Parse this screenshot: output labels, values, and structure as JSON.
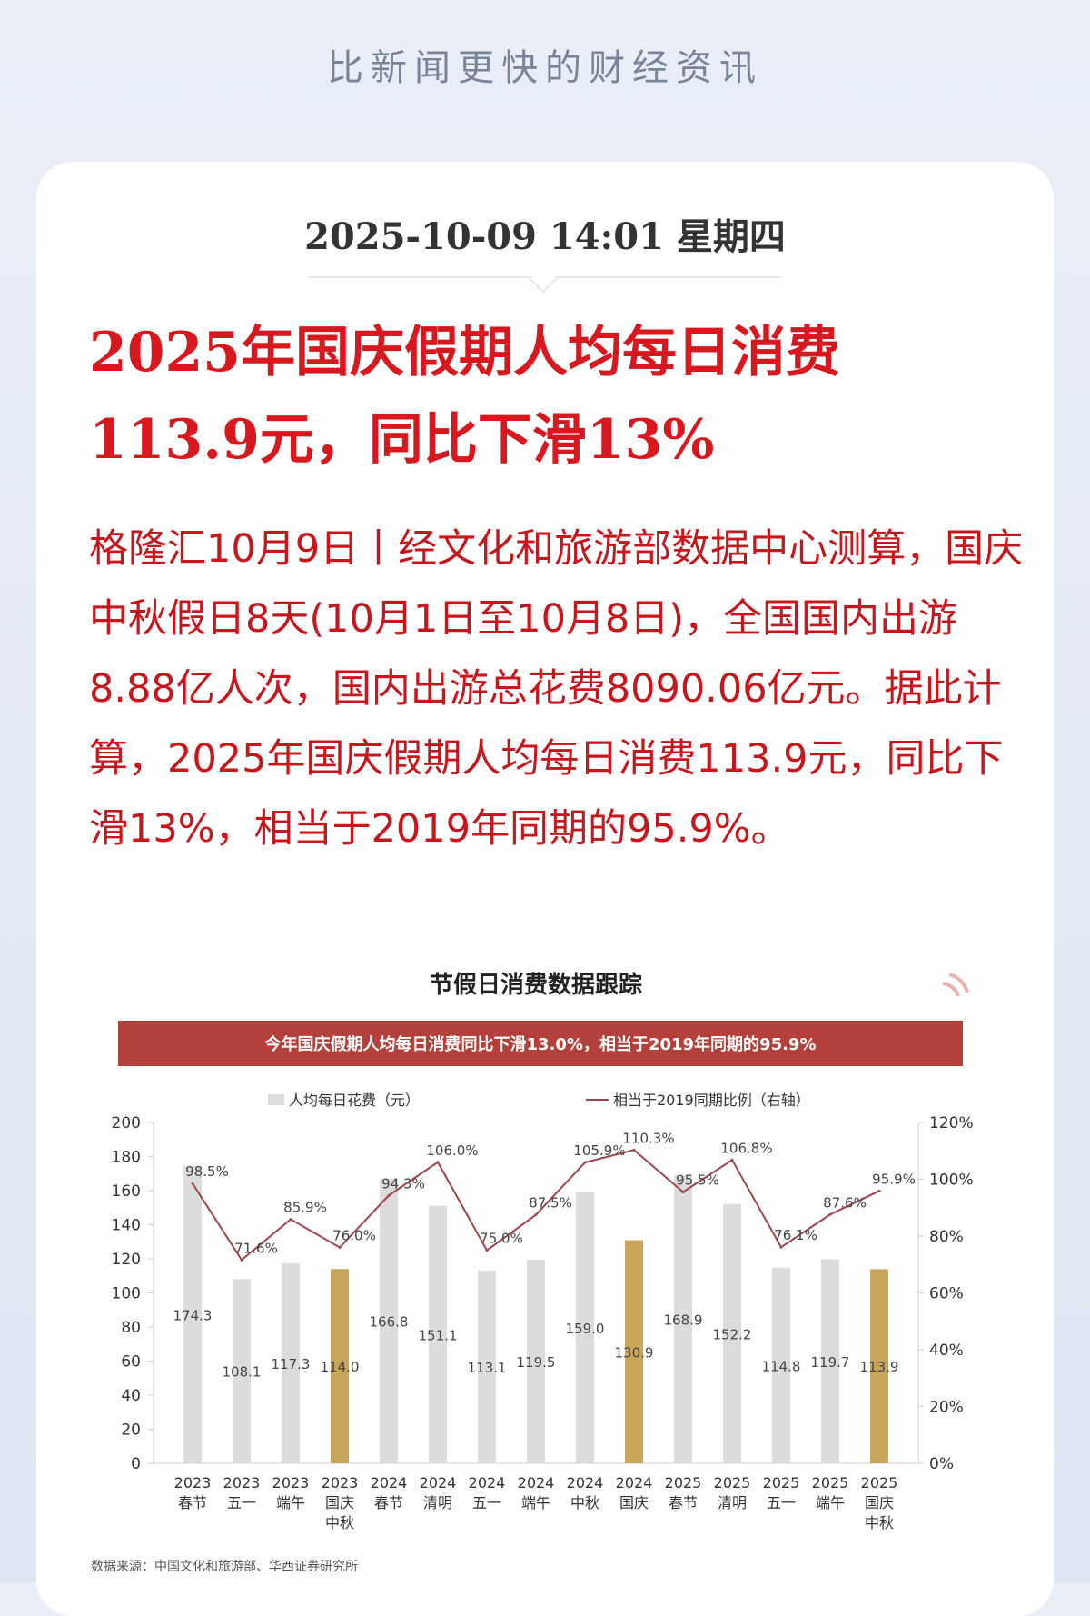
{
  "header": {
    "slogan": "比新闻更快的财经资讯"
  },
  "article": {
    "datetime": "2025-10-09 14:01 星期四",
    "headline": "2025年国庆假期人均每日消费113.9元，同比下滑13%",
    "summary": "格隆汇10月9日丨经文化和旅游部数据中心测算，国庆中秋假日8天(10月1日至10月8日)，全国国内出游8.88亿人次，国内出游总花费8090.06亿元。据此计算，2025年国庆假期人均每日消费113.9元，同比下滑13%，相当于2019年同期的95.9%。"
  },
  "chart_data": {
    "type": "bar",
    "title": "节假日消费数据跟踪",
    "subtitle": "今年国庆假期人均每日消费同比下滑13.0%，相当于2019年同期的95.9%",
    "source": "数据来源：中国文化和旅游部、华西证券研究所",
    "categories": [
      [
        "2023",
        "春节"
      ],
      [
        "2023",
        "五一"
      ],
      [
        "2023",
        "端午"
      ],
      [
        "2023",
        "国庆",
        "中秋"
      ],
      [
        "2024",
        "春节"
      ],
      [
        "2024",
        "清明"
      ],
      [
        "2024",
        "五一"
      ],
      [
        "2024",
        "端午"
      ],
      [
        "2024",
        "中秋"
      ],
      [
        "2024",
        "国庆"
      ],
      [
        "2025",
        "春节"
      ],
      [
        "2025",
        "清明"
      ],
      [
        "2025",
        "五一"
      ],
      [
        "2025",
        "端午"
      ],
      [
        "2025",
        "国庆",
        "中秋"
      ]
    ],
    "series": [
      {
        "name": "人均每日花费（元）",
        "kind": "bar",
        "axis": "left",
        "values": [
          174.3,
          108.1,
          117.3,
          114.0,
          166.8,
          151.1,
          113.1,
          119.5,
          159.0,
          130.9,
          168.9,
          152.2,
          114.8,
          119.7,
          113.9
        ],
        "labels": [
          "174.3",
          "108.1",
          "117.3",
          "114.0",
          "166.8",
          "151.1",
          "113.1",
          "119.5",
          "159.0",
          "130.9",
          "168.9",
          "152.2",
          "114.8",
          "119.7",
          "113.9"
        ],
        "highlight_indices": [
          3,
          9,
          14
        ]
      },
      {
        "name": "相当于2019同期比例（右轴）",
        "kind": "line",
        "axis": "right",
        "values": [
          98.5,
          71.6,
          85.9,
          76.0,
          94.3,
          106.0,
          75.0,
          87.5,
          105.9,
          110.3,
          95.5,
          106.8,
          76.1,
          87.6,
          95.9
        ],
        "labels": [
          "98.5%",
          "71.6%",
          "85.9%",
          "76.0%",
          "94.3%",
          "106.0%",
          "75.0%",
          "87.5%",
          "105.9%",
          "110.3%",
          "95.5%",
          "106.8%",
          "76.1%",
          "87.6%",
          "95.9%"
        ]
      }
    ],
    "y_left": {
      "min": 0,
      "max": 200,
      "ticks": [
        "0",
        "20",
        "40",
        "60",
        "80",
        "100",
        "120",
        "140",
        "160",
        "180",
        "200"
      ]
    },
    "y_right": {
      "min": 0,
      "max": 120,
      "ticks": [
        "0%",
        "20%",
        "40%",
        "60%",
        "80%",
        "100%",
        "120%"
      ]
    },
    "colors": {
      "bar": "#dcdcdc",
      "bar_highlight": "#c9a55c",
      "line": "#a0464a",
      "banner": "#b3403a",
      "banner_text": "#ffffff"
    },
    "legend_placement": "top",
    "grid": false
  }
}
